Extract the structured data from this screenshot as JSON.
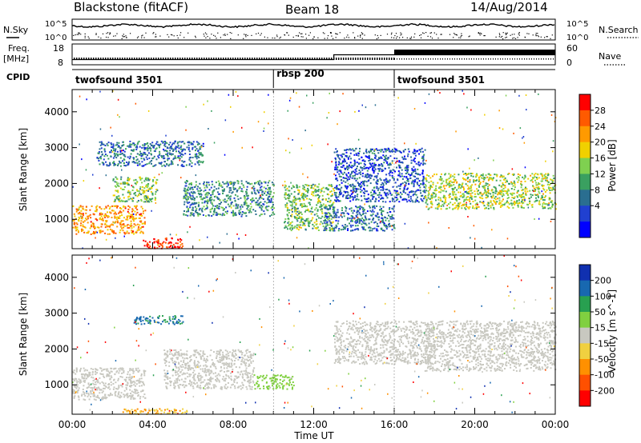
{
  "header": {
    "station": "Blackstone (fitACF)",
    "beam": "Beam 18",
    "date": "14/Aug/2014"
  },
  "nsky": {
    "label": "N.Sky",
    "ticks": [
      "10^5",
      "10^0"
    ],
    "right_label": "N.Search",
    "right_ticks": [
      "10^5",
      "10^0"
    ]
  },
  "freq": {
    "label1": "Freq.",
    "label2": "[MHz]",
    "ticks": [
      "18",
      "8"
    ],
    "right_label": "Nave",
    "right_ticks": [
      "60",
      "0"
    ]
  },
  "cpid": {
    "label": "CPID",
    "segments": [
      {
        "name": "twofsound 3501",
        "start_hour": 0
      },
      {
        "name": "rbsp 200",
        "start_hour": 10
      },
      {
        "name": "twofsound 3501",
        "start_hour": 16
      }
    ]
  },
  "power_colorbar": {
    "label": "Power [dB]",
    "ticks": [
      "28",
      "24",
      "20",
      "16",
      "12",
      "8",
      "4"
    ],
    "colors": [
      "#ff0000",
      "#ff5a00",
      "#ff9a00",
      "#f0d000",
      "#7fd050",
      "#3aa060",
      "#2a6e90",
      "#2040d0",
      "#0000ff"
    ]
  },
  "velocity_colorbar": {
    "label": "Velocity [m s^-1]",
    "ticks": [
      "200",
      "100",
      "50",
      "15",
      "-15",
      "-50",
      "-100",
      "-200"
    ],
    "colors": [
      "#1030b0",
      "#1868b0",
      "#28a050",
      "#80d040",
      "#c8c8c0",
      "#f0d040",
      "#ff9000",
      "#ff5000",
      "#ff0000"
    ]
  },
  "chart_data": {
    "type": "heatmap",
    "xlabel": "Time UT",
    "ylabel": "Slant Range [km]",
    "xticks": [
      "00:00",
      "04:00",
      "08:00",
      "12:00",
      "16:00",
      "20:00",
      "00:00"
    ],
    "xlim_hours": [
      0,
      24
    ],
    "ylim_km": [
      180,
      4620
    ],
    "yticks": [
      1000,
      2000,
      3000,
      4000
    ],
    "frequency_mhz": [
      {
        "start_hour": 0,
        "end_hour": 13,
        "value": 10.5
      },
      {
        "start_hour": 13,
        "end_hour": 24,
        "value": 12.8
      }
    ],
    "panels": [
      {
        "name": "Power",
        "units": "dB",
        "scale": [
          0,
          30
        ],
        "echo_regions": [
          {
            "t0": 0.0,
            "t1": 3.6,
            "r0": 600,
            "r1": 1400,
            "level": 22
          },
          {
            "t0": 2.0,
            "t1": 4.2,
            "r0": 1500,
            "r1": 2200,
            "level": 14
          },
          {
            "t0": 3.5,
            "t1": 5.5,
            "r0": 200,
            "r1": 500,
            "level": 28
          },
          {
            "t0": 1.2,
            "t1": 6.5,
            "r0": 2500,
            "r1": 3200,
            "level": 8
          },
          {
            "t0": 5.5,
            "t1": 10.0,
            "r0": 1100,
            "r1": 2100,
            "level": 10
          },
          {
            "t0": 10.5,
            "t1": 13.0,
            "r0": 700,
            "r1": 2000,
            "level": 14
          },
          {
            "t0": 13.0,
            "t1": 17.5,
            "r0": 1500,
            "r1": 3000,
            "level": 6
          },
          {
            "t0": 17.5,
            "t1": 24.0,
            "r0": 1300,
            "r1": 2300,
            "level": 16
          },
          {
            "t0": 12.5,
            "t1": 16.0,
            "r0": 700,
            "r1": 1400,
            "level": 8
          }
        ]
      },
      {
        "name": "Velocity",
        "units": "m s^-1",
        "scale": [
          -200,
          200
        ],
        "echo_regions": [
          {
            "t0": 0.0,
            "t1": 3.6,
            "r0": 600,
            "r1": 1500,
            "level": 0
          },
          {
            "t0": 4.5,
            "t1": 9.0,
            "r0": 900,
            "r1": 2000,
            "level": 0
          },
          {
            "t0": 9.0,
            "t1": 11.0,
            "r0": 900,
            "r1": 1300,
            "level": 40
          },
          {
            "t0": 2.5,
            "t1": 6.0,
            "r0": 200,
            "r1": 350,
            "level": -60
          },
          {
            "t0": 3.0,
            "t1": 5.5,
            "r0": 2700,
            "r1": 2950,
            "level": 120
          },
          {
            "t0": 13.0,
            "t1": 18.0,
            "r0": 1600,
            "r1": 2800,
            "level": 0
          },
          {
            "t0": 17.5,
            "t1": 24.0,
            "r0": 1400,
            "r1": 2800,
            "level": 0
          }
        ]
      }
    ]
  }
}
